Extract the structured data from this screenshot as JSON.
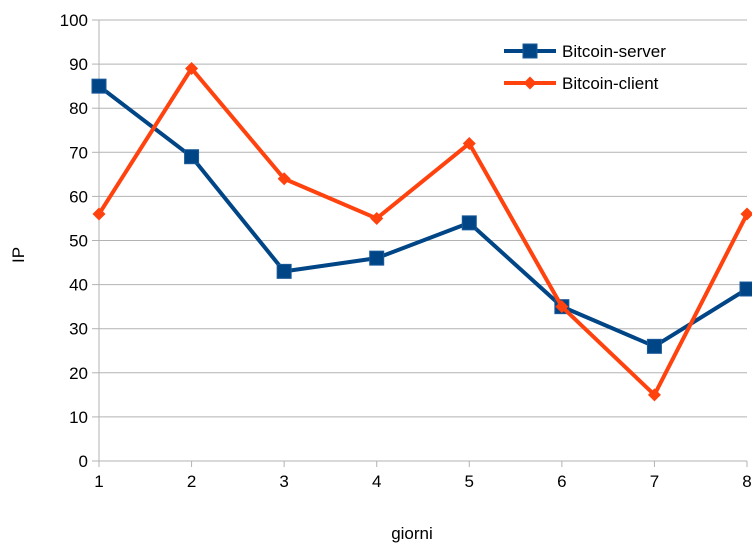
{
  "chart_data": {
    "type": "line",
    "title": "",
    "xlabel": "giorni",
    "ylabel": "IP",
    "x": [
      1,
      2,
      3,
      4,
      5,
      6,
      7,
      8
    ],
    "xlim": [
      1,
      8
    ],
    "ylim": [
      0,
      100
    ],
    "yticks": [
      0,
      10,
      20,
      30,
      40,
      50,
      60,
      70,
      80,
      90,
      100
    ],
    "grid": "horizontal",
    "legend_position": "top-right",
    "series": [
      {
        "name": "Bitcoin-server",
        "values": [
          85,
          69,
          43,
          46,
          54,
          35,
          26,
          39
        ],
        "color": "#004586",
        "marker": "square"
      },
      {
        "name": "Bitcoin-client",
        "values": [
          56,
          89,
          64,
          55,
          72,
          35,
          15,
          56
        ],
        "color": "#ff420e",
        "marker": "diamond"
      }
    ]
  }
}
